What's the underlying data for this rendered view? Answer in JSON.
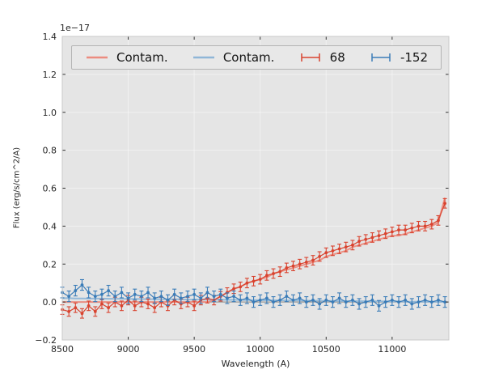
{
  "chart_data": {
    "type": "line",
    "title": "",
    "xlabel": "Wavelength (A)",
    "ylabel": "Flux (erg/s/cm^2/A)",
    "y_offset_text": "1e−17",
    "xlim": [
      8500,
      11430
    ],
    "ylim": [
      -0.2,
      1.4
    ],
    "grid": true,
    "legend_position": "upper center horizontal",
    "x_ticks": [
      8500,
      9000,
      9500,
      10000,
      10500,
      11000
    ],
    "x_tick_labels": [
      "8500",
      "9000",
      "9500",
      "10000",
      "10500",
      "11000"
    ],
    "y_ticks": [
      -0.2,
      0.0,
      0.2,
      0.4,
      0.6,
      0.8,
      1.0,
      1.2,
      1.4
    ],
    "y_tick_labels": [
      "−0.2",
      "0.0",
      "0.2",
      "0.4",
      "0.6",
      "0.8",
      "1.0",
      "1.2",
      "1.4"
    ],
    "colors": {
      "figure_bg": "#ffffff",
      "plot_bg": "#e5e5e5",
      "grid": "#ffffff",
      "zero_line": "#999999",
      "tick": "#333333"
    },
    "x": [
      8500,
      8550,
      8600,
      8650,
      8700,
      8750,
      8800,
      8850,
      8900,
      8950,
      9000,
      9050,
      9100,
      9150,
      9200,
      9250,
      9300,
      9350,
      9400,
      9450,
      9500,
      9550,
      9600,
      9650,
      9700,
      9750,
      9800,
      9850,
      9900,
      9950,
      10000,
      10050,
      10100,
      10150,
      10200,
      10250,
      10300,
      10350,
      10400,
      10450,
      10500,
      10550,
      10600,
      10650,
      10700,
      10750,
      10800,
      10850,
      10900,
      10950,
      11000,
      11050,
      11100,
      11150,
      11200,
      11250,
      11300,
      11350,
      11400
    ],
    "series": [
      {
        "name": "Contam.",
        "style": "line",
        "color": "#ec8c80",
        "values": [
          0,
          0,
          0,
          0,
          0,
          0,
          0,
          0,
          0,
          0,
          0,
          0,
          0,
          0,
          0,
          0,
          0,
          0,
          0,
          0,
          0,
          0,
          0,
          0.01,
          0.03,
          0.05,
          0.07,
          0.08,
          0.1,
          0.11,
          0.12,
          0.13,
          0.15,
          0.16,
          0.17,
          0.18,
          0.19,
          0.2,
          0.21,
          0.22,
          0.24,
          0.25,
          0.26,
          0.27,
          0.29,
          0.3,
          0.31,
          0.32,
          0.33,
          0.34,
          0.35,
          0.35,
          0.36,
          0.37,
          0.38,
          0.39,
          0.4,
          0.42,
          0.55
        ]
      },
      {
        "name": "Contam.",
        "style": "line",
        "color": "#8fb6d7",
        "values": [
          0.02,
          0.02,
          0.019,
          0.019,
          0.018,
          0.018,
          0.018,
          0.017,
          0.017,
          0.017,
          0.016,
          0.016,
          0.016,
          0.015,
          0.015,
          0.015,
          0.014,
          0.014,
          0.014,
          0.013,
          0.013,
          0.013,
          0.012,
          0.012,
          0.012,
          0.011,
          0.011,
          0.011,
          0.01,
          0.01,
          0.01,
          0.009,
          0.009,
          0.009,
          0.008,
          0.008,
          0.008,
          0.007,
          0.007,
          0.007,
          0.006,
          0.006,
          0.006,
          0.005,
          0.005,
          0.005,
          0.004,
          0.004,
          0.004,
          0.003,
          0.003,
          0.003,
          0.002,
          0.002,
          0.002,
          0.001,
          0.001,
          0.001,
          0.0
        ]
      },
      {
        "name": "68",
        "style": "errorbar",
        "color": "#d9432f",
        "yerr": 0.025,
        "values": [
          -0.04,
          -0.05,
          -0.03,
          -0.06,
          -0.02,
          -0.05,
          -0.01,
          -0.03,
          0.0,
          -0.02,
          0.01,
          -0.02,
          0.0,
          -0.01,
          -0.03,
          0.0,
          -0.02,
          0.01,
          -0.01,
          0.0,
          -0.02,
          0.01,
          0.02,
          0.01,
          0.03,
          0.05,
          0.07,
          0.08,
          0.1,
          0.11,
          0.12,
          0.14,
          0.15,
          0.16,
          0.18,
          0.19,
          0.2,
          0.21,
          0.22,
          0.24,
          0.26,
          0.27,
          0.28,
          0.29,
          0.3,
          0.32,
          0.33,
          0.34,
          0.35,
          0.36,
          0.37,
          0.38,
          0.38,
          0.39,
          0.4,
          0.4,
          0.41,
          0.43,
          0.52
        ]
      },
      {
        "name": "-152",
        "style": "errorbar",
        "color": "#3a7cb8",
        "yerr": 0.028,
        "values": [
          0.05,
          0.03,
          0.06,
          0.09,
          0.05,
          0.03,
          0.04,
          0.06,
          0.03,
          0.05,
          0.02,
          0.04,
          0.03,
          0.05,
          0.02,
          0.03,
          0.01,
          0.04,
          0.02,
          0.03,
          0.04,
          0.02,
          0.05,
          0.03,
          0.04,
          0.02,
          0.03,
          0.01,
          0.02,
          0.0,
          0.01,
          0.02,
          0.0,
          0.01,
          0.03,
          0.01,
          0.02,
          0.0,
          0.01,
          -0.01,
          0.01,
          0.0,
          0.02,
          0.0,
          0.01,
          -0.01,
          0.0,
          0.01,
          -0.02,
          0.0,
          0.01,
          0.0,
          0.01,
          -0.01,
          0.0,
          0.01,
          0.0,
          0.01,
          0.0
        ]
      }
    ]
  }
}
